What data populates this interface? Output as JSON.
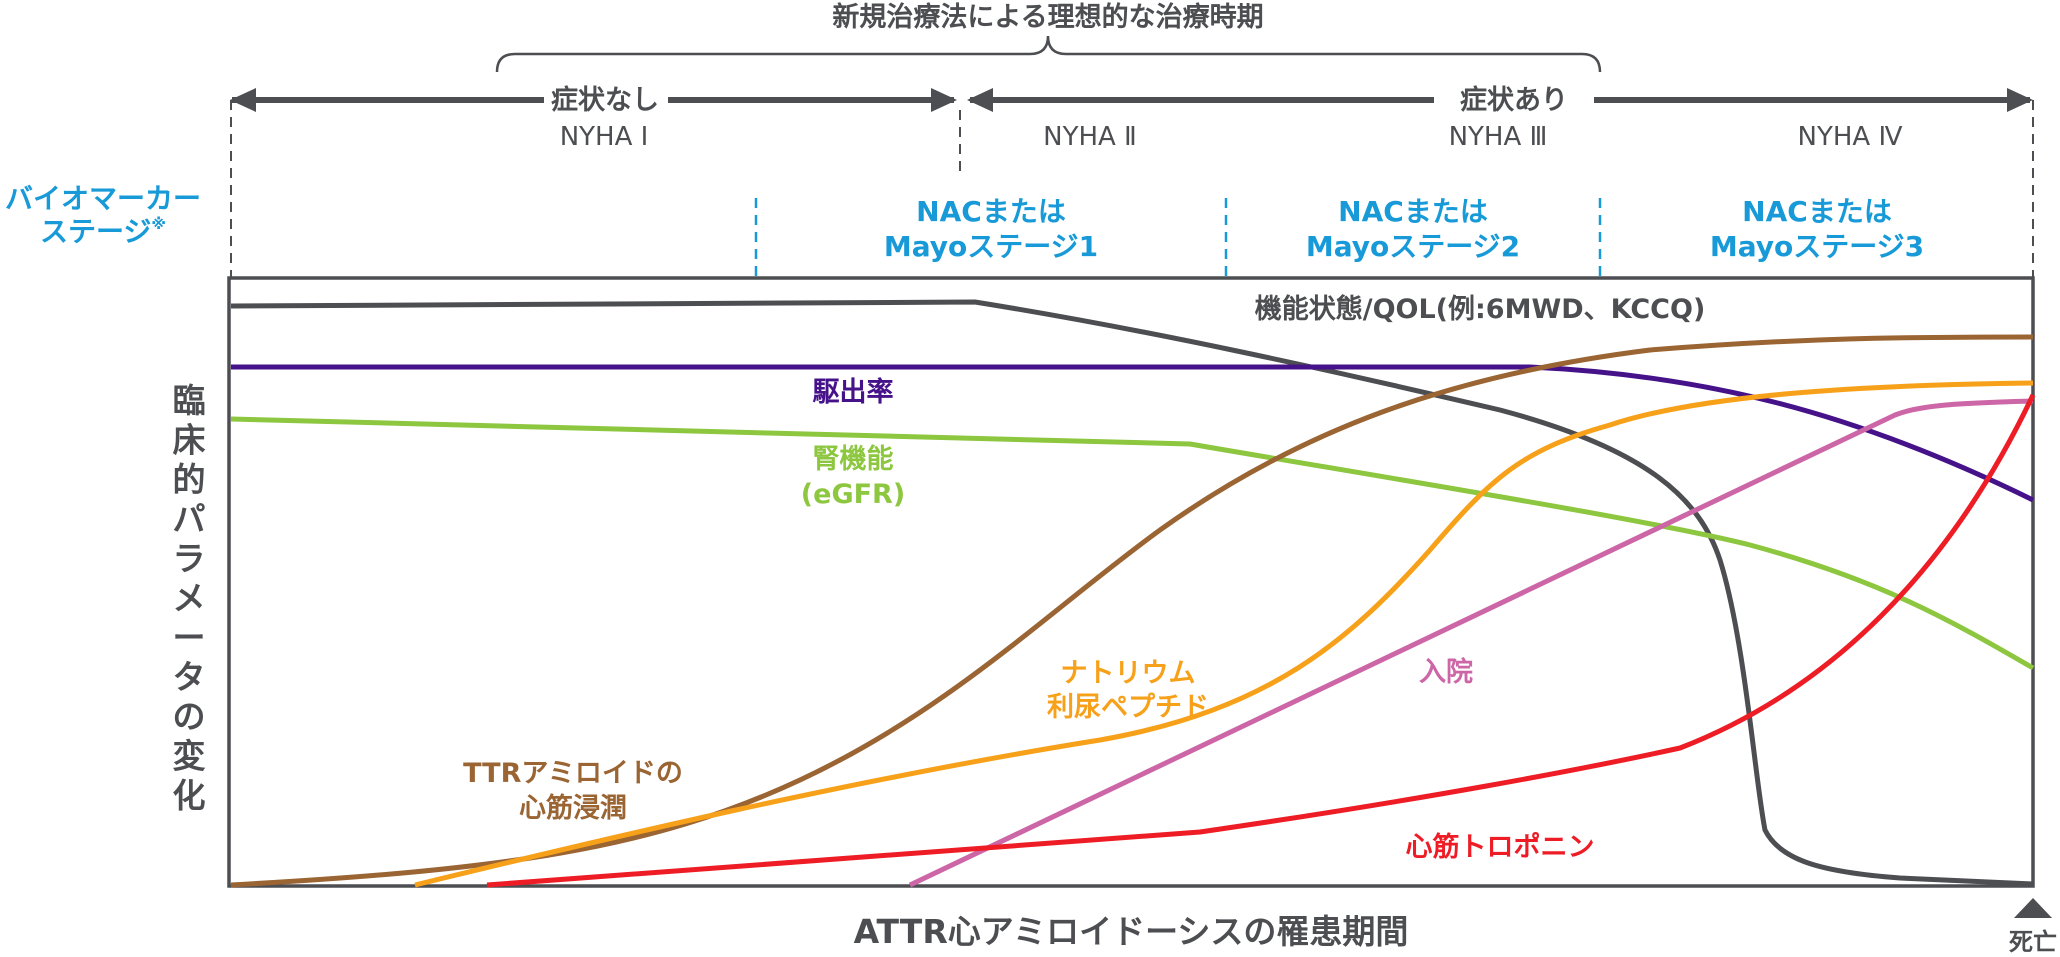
{
  "header": {
    "ideal_period": "新規治療法による理想的な治療時期",
    "asymptomatic": "症状なし",
    "symptomatic": "症状あり"
  },
  "nyha": {
    "class_1": "NYHA Ⅰ",
    "class_2": "NYHA Ⅱ",
    "class_3": "NYHA Ⅲ",
    "class_4": "NYHA Ⅳ"
  },
  "biomarker": {
    "label_line1": "バイオマーカー",
    "label_line2": "ステージ",
    "footnote_mark": "※",
    "stage_1_line1": "NACまたは",
    "stage_1_line2": "Mayoステージ1",
    "stage_2_line1": "NACまたは",
    "stage_2_line2": "Mayoステージ2",
    "stage_3_line1": "NACまたは",
    "stage_3_line2": "Mayoステージ3"
  },
  "axes": {
    "ylabel": "臨床的パラメータの変化",
    "xlabel": "ATTR心アミロイドーシスの罹患期間",
    "end_marker": "死亡"
  },
  "colors": {
    "frame": "#4d4e52",
    "biomarker": "#179ad7",
    "functional_status": "#4d4e52",
    "ejection_fraction": "#46128a",
    "renal_function": "#8dc63f",
    "amyloid_infiltration": "#9a6433",
    "natriuretic_peptide": "#f7a11a",
    "hospitalization": "#cc66a6",
    "troponin": "#ee1c25"
  },
  "curves": {
    "functional_status": "機能状態/QOL(例:6MWD、KCCQ)",
    "ejection_fraction": "駆出率",
    "renal_function_line1": "腎機能",
    "renal_function_line2": "(eGFR)",
    "amyloid_line1": "TTRアミロイドの",
    "amyloid_line2": "心筋浸潤",
    "natriuretic_line1": "ナトリウム",
    "natriuretic_line2": "利尿ペプチド",
    "hospitalization": "入院",
    "troponin": "心筋トロポニン"
  }
}
